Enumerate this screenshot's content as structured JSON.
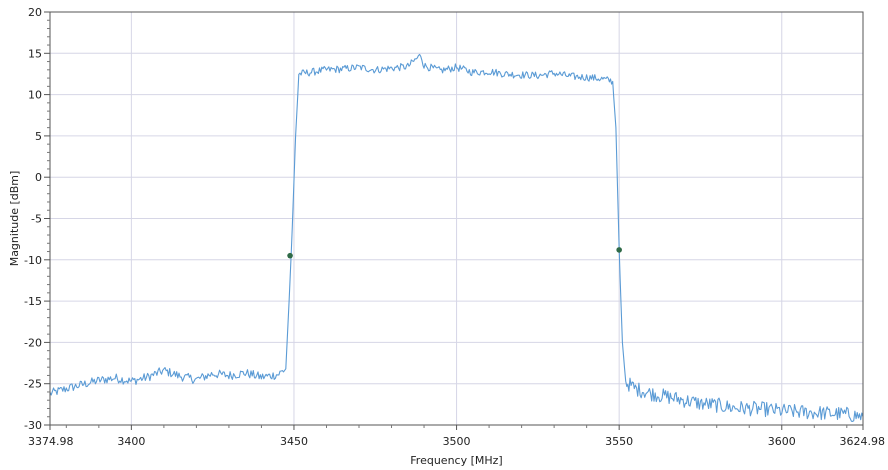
{
  "chart_data": {
    "type": "line",
    "title": "",
    "xlabel": "Frequency [MHz]",
    "ylabel": "Magnitude [dBm]",
    "xlim": [
      3374.98,
      3624.98
    ],
    "ylim": [
      -30,
      20
    ],
    "x_ticks": [
      3374.98,
      3400,
      3450,
      3500,
      3550,
      3600,
      3624.98
    ],
    "x_tick_labels": [
      "3374.98",
      "3400",
      "3450",
      "3500",
      "3550",
      "3600",
      "3624.98"
    ],
    "y_ticks": [
      20,
      15,
      10,
      5,
      0,
      -5,
      -10,
      -15,
      -20,
      -25,
      -30
    ],
    "y_tick_labels": [
      "20",
      "15",
      "10",
      "5",
      "0",
      "-5",
      "-10",
      "-15",
      "-20",
      "-25",
      "-30"
    ],
    "grid": true,
    "legend": "none",
    "series": [
      {
        "color": "#5b9bd5",
        "x": [
          3374.98,
          3380,
          3385,
          3390,
          3395,
          3400,
          3405,
          3410,
          3415,
          3420,
          3425,
          3430,
          3435,
          3440,
          3445,
          3447.5,
          3448.5,
          3449.5,
          3450.5,
          3451.5,
          3455,
          3460,
          3465,
          3470,
          3475,
          3480,
          3485,
          3489,
          3490,
          3495,
          3500,
          3505,
          3510,
          3515,
          3520,
          3525,
          3530,
          3535,
          3540,
          3545,
          3548,
          3549,
          3550,
          3551,
          3552,
          3555,
          3560,
          3565,
          3570,
          3575,
          3580,
          3585,
          3590,
          3595,
          3600,
          3605,
          3610,
          3615,
          3620,
          3624.98
        ],
        "y": [
          -26.2,
          -25.6,
          -25.1,
          -24.6,
          -24.3,
          -24.7,
          -24.2,
          -23.4,
          -24.1,
          -24.5,
          -23.8,
          -24.0,
          -23.7,
          -24.2,
          -23.9,
          -23.2,
          -15.0,
          -6.0,
          5.0,
          12.5,
          12.7,
          13.0,
          13.1,
          13.3,
          13.0,
          13.2,
          13.4,
          14.8,
          13.5,
          12.9,
          13.3,
          12.7,
          12.8,
          12.5,
          12.4,
          12.3,
          12.6,
          12.2,
          12.1,
          11.9,
          11.6,
          6.0,
          -8.8,
          -20.0,
          -24.8,
          -25.6,
          -26.2,
          -26.6,
          -27.0,
          -27.4,
          -27.6,
          -27.9,
          -28.0,
          -28.1,
          -28.3,
          -28.4,
          -28.5,
          -28.6,
          -28.7,
          -29.0
        ]
      }
    ],
    "markers": [
      {
        "x": 3448.8,
        "y": -9.5,
        "color": "#2f6a47"
      },
      {
        "x": 3550.0,
        "y": -8.8,
        "color": "#2f6a47"
      }
    ],
    "colors": {
      "frame": "#555555",
      "grid": "#d6d6e6",
      "background": "#ffffff"
    }
  }
}
